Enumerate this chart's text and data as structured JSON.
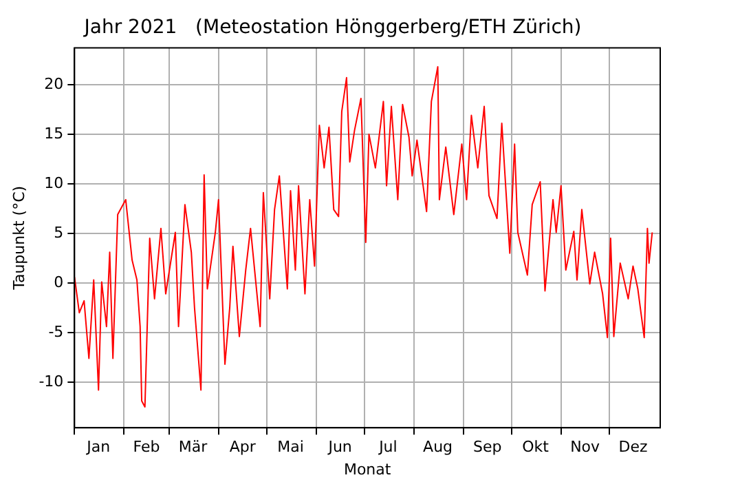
{
  "chart_data": {
    "type": "line",
    "title": "Jahr 2021   (Meteostation Hönggerberg/ETH Zürich)",
    "xlabel": "Monat",
    "ylabel": "Taupunkt (°C)",
    "x": [
      "2021-01-01",
      "2021-01-04",
      "2021-01-07",
      "2021-01-10",
      "2021-01-13",
      "2021-01-16",
      "2021-01-18",
      "2021-01-21",
      "2021-01-23",
      "2021-01-25",
      "2021-01-28",
      "2021-02-02",
      "2021-02-06",
      "2021-02-09",
      "2021-02-11",
      "2021-02-12",
      "2021-02-14",
      "2021-02-15",
      "2021-02-17",
      "2021-02-20",
      "2021-02-24",
      "2021-02-27",
      "2021-03-05",
      "2021-03-07",
      "2021-03-11",
      "2021-03-15",
      "2021-03-17",
      "2021-03-21",
      "2021-03-23",
      "2021-03-25",
      "2021-03-30",
      "2021-04-01",
      "2021-04-05",
      "2021-04-08",
      "2021-04-10",
      "2021-04-14",
      "2021-04-18",
      "2021-04-21",
      "2021-04-27",
      "2021-04-29",
      "2021-05-03",
      "2021-05-06",
      "2021-05-09",
      "2021-05-14",
      "2021-05-16",
      "2021-05-19",
      "2021-05-21",
      "2021-05-25",
      "2021-05-28",
      "2021-05-31",
      "2021-06-03",
      "2021-06-06",
      "2021-06-09",
      "2021-06-12",
      "2021-06-15",
      "2021-06-17",
      "2021-06-20",
      "2021-06-22",
      "2021-06-25",
      "2021-06-29",
      "2021-07-02",
      "2021-07-04",
      "2021-07-08",
      "2021-07-13",
      "2021-07-15",
      "2021-07-18",
      "2021-07-22",
      "2021-07-25",
      "2021-07-29",
      "2021-07-31",
      "2021-08-03",
      "2021-08-09",
      "2021-08-12",
      "2021-08-16",
      "2021-08-17",
      "2021-08-21",
      "2021-08-26",
      "2021-08-31",
      "2021-09-03",
      "2021-09-06",
      "2021-09-10",
      "2021-09-14",
      "2021-09-17",
      "2021-09-22",
      "2021-09-25",
      "2021-09-30",
      "2021-10-03",
      "2021-10-05",
      "2021-10-11",
      "2021-10-14",
      "2021-10-19",
      "2021-10-22",
      "2021-10-27",
      "2021-10-29",
      "2021-11-01",
      "2021-11-04",
      "2021-11-09",
      "2021-11-11",
      "2021-11-14",
      "2021-11-19",
      "2021-11-22",
      "2021-11-27",
      "2021-11-30",
      "2021-12-02",
      "2021-12-04",
      "2021-12-08",
      "2021-12-13",
      "2021-12-16",
      "2021-12-19",
      "2021-12-23",
      "2021-12-25",
      "2021-12-26",
      "2021-12-28"
    ],
    "series": [
      {
        "color": "#ff0000",
        "values": [
          0.6,
          -3,
          -1.8,
          -7.6,
          0.3,
          -10.8,
          0.1,
          -4.4,
          3.1,
          -7.6,
          6.9,
          8.4,
          2.3,
          0.3,
          -4.4,
          -11.9,
          -12.5,
          -6.8,
          4.5,
          -1.6,
          5.5,
          -1.1,
          5.1,
          -4.4,
          7.9,
          3.1,
          -2.5,
          -10.8,
          10.9,
          -0.6,
          5.1,
          8.4,
          -8.2,
          -2.5,
          3.7,
          -5.4,
          1.3,
          5.5,
          -4.4,
          9.1,
          -1.6,
          7.4,
          10.8,
          -0.6,
          9.3,
          1.3,
          9.8,
          -1.1,
          8.4,
          1.7,
          15.9,
          11.6,
          15.7,
          7.4,
          6.7,
          17.3,
          20.7,
          12.2,
          15.4,
          18.6,
          4.1,
          15,
          11.6,
          18.3,
          9.8,
          17.8,
          8.4,
          18,
          14.7,
          10.8,
          14.4,
          7.2,
          18.3,
          21.8,
          8.4,
          13.7,
          6.9,
          14,
          8.4,
          16.9,
          11.6,
          17.8,
          8.8,
          6.5,
          16.1,
          3,
          14,
          5.1,
          0.8,
          7.9,
          10.2,
          -0.8,
          8.4,
          5.1,
          9.8,
          1.3,
          5.2,
          0.3,
          7.4,
          -0.1,
          3.1,
          -1.1,
          -5.5,
          4.5,
          -5.4,
          2,
          -1.6,
          1.7,
          -0.6,
          -5.5,
          5.5,
          2,
          5.1
        ]
      }
    ],
    "xlim": [
      "2021-01-01",
      "2022-01-02"
    ],
    "xticks": [
      {
        "value": "2021-01-01",
        "label": null
      },
      {
        "value": "2021-01-16",
        "label": "Jan"
      },
      {
        "value": "2021-02-01",
        "label": null
      },
      {
        "value": "2021-02-15",
        "label": "Feb"
      },
      {
        "value": "2021-03-01",
        "label": null
      },
      {
        "value": "2021-03-16",
        "label": "Mär"
      },
      {
        "value": "2021-04-01",
        "label": null
      },
      {
        "value": "2021-04-16",
        "label": "Apr"
      },
      {
        "value": "2021-05-01",
        "label": null
      },
      {
        "value": "2021-05-16",
        "label": "Mai"
      },
      {
        "value": "2021-06-01",
        "label": null
      },
      {
        "value": "2021-06-16",
        "label": "Jun"
      },
      {
        "value": "2021-07-01",
        "label": null
      },
      {
        "value": "2021-07-16",
        "label": "Jul"
      },
      {
        "value": "2021-08-01",
        "label": null
      },
      {
        "value": "2021-08-16",
        "label": "Aug"
      },
      {
        "value": "2021-09-01",
        "label": null
      },
      {
        "value": "2021-09-16",
        "label": "Sep"
      },
      {
        "value": "2021-10-01",
        "label": null
      },
      {
        "value": "2021-10-16",
        "label": "Okt"
      },
      {
        "value": "2021-11-01",
        "label": null
      },
      {
        "value": "2021-11-16",
        "label": "Nov"
      },
      {
        "value": "2021-12-01",
        "label": null
      },
      {
        "value": "2021-12-16",
        "label": "Dez"
      }
    ],
    "ylim": [
      -14.6,
      23.7
    ],
    "yticks": [
      -10,
      -5,
      0,
      5,
      10,
      15,
      20
    ],
    "grid": true,
    "legend": false,
    "marker": "none",
    "line_style": "solid"
  }
}
